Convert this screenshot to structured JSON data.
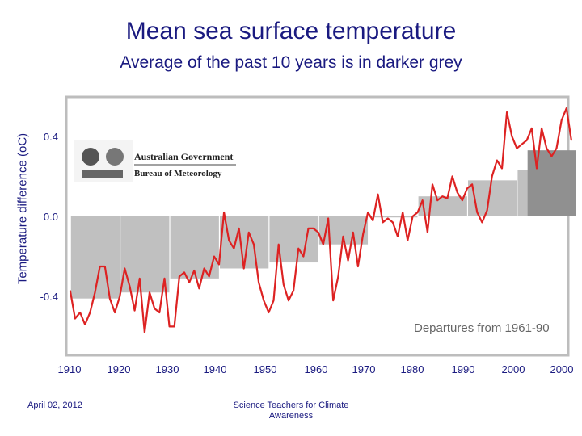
{
  "header": {
    "title": "Mean sea surface temperature",
    "subtitle": "Average of the past 10 years is in darker grey"
  },
  "footer": {
    "date": "April 02, 2012",
    "credit": "Science Teachers for Climate Awareness"
  },
  "logo": {
    "line1": "Australian Government",
    "line2": "Bureau of Meteorology"
  },
  "colors": {
    "line": "#dd2222",
    "bar": "#c0c0c0",
    "bar_recent": "#909090",
    "text": "#1a1a80"
  },
  "chart_data": {
    "type": "line",
    "title": "Mean sea surface temperature",
    "subtitle": "Average of the past 10 years is in darker grey",
    "ylabel": "Temperature difference (oC)",
    "annotation": "Departures from 1961-90",
    "ylim": [
      -0.66,
      0.6
    ],
    "xlim": [
      1910,
      2012
    ],
    "y_ticks": [
      0.4,
      0.0,
      -0.4
    ],
    "y_tick_labels": [
      "0.4",
      "0.0",
      "-0.4"
    ],
    "x_tick_labels": [
      "1910",
      "1920",
      "1930",
      "1940",
      "1950",
      "1960",
      "1970",
      "1980",
      "1990",
      "2000",
      "2000"
    ],
    "grid": false,
    "decadal_bars": [
      {
        "start": 1910,
        "end": 1919,
        "value": -0.41
      },
      {
        "start": 1920,
        "end": 1929,
        "value": -0.38
      },
      {
        "start": 1930,
        "end": 1939,
        "value": -0.31
      },
      {
        "start": 1940,
        "end": 1949,
        "value": -0.26
      },
      {
        "start": 1950,
        "end": 1959,
        "value": -0.23
      },
      {
        "start": 1960,
        "end": 1969,
        "value": -0.14
      },
      {
        "start": 1970,
        "end": 1979,
        "value": -0.005
      },
      {
        "start": 1980,
        "end": 1989,
        "value": 0.1
      },
      {
        "start": 1990,
        "end": 1999,
        "value": 0.18
      },
      {
        "start": 2000,
        "end": 2009,
        "value": 0.23
      },
      {
        "start": 2002,
        "end": 2011,
        "value": 0.33,
        "recent": true
      }
    ],
    "series": [
      {
        "x": [
          1910,
          1911,
          1912,
          1913,
          1914,
          1915,
          1916,
          1917,
          1918,
          1919,
          1920,
          1921,
          1922,
          1923,
          1924,
          1925,
          1926,
          1927,
          1928,
          1929,
          1930,
          1931,
          1932,
          1933,
          1934,
          1935,
          1936,
          1937,
          1938,
          1939,
          1940,
          1941,
          1942,
          1943,
          1944,
          1945,
          1946,
          1947,
          1948,
          1949,
          1950,
          1951,
          1952,
          1953,
          1954,
          1955,
          1956,
          1957,
          1958,
          1959,
          1960,
          1961,
          1962,
          1963,
          1964,
          1965,
          1966,
          1967,
          1968,
          1969,
          1970,
          1971,
          1972,
          1973,
          1974,
          1975,
          1976,
          1977,
          1978,
          1979,
          1980,
          1981,
          1982,
          1983,
          1984,
          1985,
          1986,
          1987,
          1988,
          1989,
          1990,
          1991,
          1992,
          1993,
          1994,
          1995,
          1996,
          1997,
          1998,
          1999,
          2000,
          2001,
          2002,
          2003,
          2004,
          2005,
          2006,
          2007,
          2008,
          2009,
          2010,
          2011
        ],
        "values": [
          -0.37,
          -0.51,
          -0.48,
          -0.54,
          -0.48,
          -0.38,
          -0.25,
          -0.25,
          -0.41,
          -0.48,
          -0.4,
          -0.26,
          -0.35,
          -0.47,
          -0.31,
          -0.58,
          -0.38,
          -0.46,
          -0.48,
          -0.31,
          -0.55,
          -0.55,
          -0.3,
          -0.28,
          -0.33,
          -0.27,
          -0.36,
          -0.26,
          -0.3,
          -0.2,
          -0.24,
          0.02,
          -0.12,
          -0.16,
          -0.06,
          -0.26,
          -0.08,
          -0.14,
          -0.33,
          -0.42,
          -0.48,
          -0.42,
          -0.14,
          -0.34,
          -0.42,
          -0.37,
          -0.16,
          -0.2,
          -0.06,
          -0.06,
          -0.08,
          -0.14,
          -0.01,
          -0.42,
          -0.3,
          -0.1,
          -0.22,
          -0.08,
          -0.25,
          -0.09,
          0.02,
          -0.02,
          0.11,
          -0.03,
          -0.01,
          -0.03,
          -0.1,
          0.02,
          -0.12,
          0.0,
          0.02,
          0.08,
          -0.08,
          0.16,
          0.08,
          0.1,
          0.09,
          0.2,
          0.12,
          0.08,
          0.14,
          0.16,
          0.02,
          -0.03,
          0.03,
          0.2,
          0.28,
          0.24,
          0.52,
          0.4,
          0.34,
          0.36,
          0.38,
          0.44,
          0.24,
          0.44,
          0.34,
          0.3,
          0.34,
          0.48,
          0.54,
          0.38
        ]
      }
    ]
  }
}
